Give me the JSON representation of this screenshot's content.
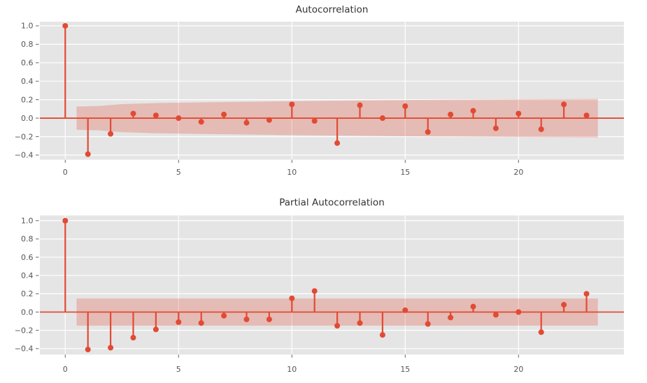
{
  "figure": {
    "background": "#ffffff",
    "panel_background": "#e5e5e5",
    "grid_color": "#ffffff",
    "accent_color": "#e24a33",
    "band_fill": "rgba(226,74,51,0.27)",
    "tick_mark_color": "#666666",
    "tick_label_color": "#555555",
    "title_color": "#333333"
  },
  "chart_data": [
    {
      "type": "stem",
      "title": "Autocorrelation",
      "xlabel": "",
      "ylabel": "",
      "grid": true,
      "legend": false,
      "xlim": [
        -1.12,
        24.65
      ],
      "ylim": [
        -0.45,
        1.045
      ],
      "xticks": [
        0,
        5,
        10,
        15,
        20
      ],
      "xtick_labels": [
        "0",
        "5",
        "10",
        "15",
        "20"
      ],
      "yticks": [
        1.0,
        0.8,
        0.6,
        0.4,
        0.2,
        0.0,
        -0.2,
        -0.4
      ],
      "ytick_labels": [
        "1.0",
        "0.8",
        "0.6",
        "0.4",
        "0.2",
        "0.0",
        "−0.2",
        "−0.4"
      ],
      "lags": [
        0,
        1,
        2,
        3,
        4,
        5,
        6,
        7,
        8,
        9,
        10,
        11,
        12,
        13,
        14,
        15,
        16,
        17,
        18,
        19,
        20,
        21,
        22,
        23
      ],
      "values": [
        1.0,
        -0.39,
        -0.17,
        0.05,
        0.03,
        0.0,
        -0.04,
        0.04,
        -0.05,
        -0.02,
        0.15,
        -0.03,
        -0.27,
        0.14,
        0.0,
        0.13,
        -0.15,
        0.04,
        0.08,
        -0.11,
        0.05,
        -0.12,
        0.15,
        0.03
      ],
      "confidence_band": {
        "symmetric": true,
        "upper": [
          [
            0.5,
            0.125
          ],
          [
            1.5,
            0.132
          ],
          [
            2.5,
            0.152
          ],
          [
            4,
            0.163
          ],
          [
            6,
            0.171
          ],
          [
            10,
            0.184
          ],
          [
            15,
            0.196
          ],
          [
            20,
            0.204
          ],
          [
            23.5,
            0.209
          ]
        ]
      }
    },
    {
      "type": "stem",
      "title": "Partial Autocorrelation",
      "xlabel": "",
      "ylabel": "",
      "grid": true,
      "legend": false,
      "xlim": [
        -1.12,
        24.65
      ],
      "ylim": [
        -0.465,
        1.057
      ],
      "xticks": [
        0,
        5,
        10,
        15,
        20
      ],
      "xtick_labels": [
        "0",
        "5",
        "10",
        "15",
        "20"
      ],
      "yticks": [
        1.0,
        0.8,
        0.6,
        0.4,
        0.2,
        0.0,
        -0.2,
        -0.4
      ],
      "ytick_labels": [
        "1.0",
        "0.8",
        "0.6",
        "0.4",
        "0.2",
        "0.0",
        "−0.2",
        "−0.4"
      ],
      "lags": [
        0,
        1,
        2,
        3,
        4,
        5,
        6,
        7,
        8,
        9,
        10,
        11,
        12,
        13,
        14,
        15,
        16,
        17,
        18,
        19,
        20,
        21,
        22,
        23
      ],
      "values": [
        1.0,
        -0.41,
        -0.39,
        -0.28,
        -0.19,
        -0.11,
        -0.12,
        -0.04,
        -0.08,
        -0.08,
        0.15,
        0.23,
        -0.15,
        -0.12,
        -0.25,
        0.02,
        -0.13,
        -0.06,
        0.06,
        -0.03,
        0.0,
        -0.22,
        0.08,
        0.2
      ],
      "confidence_band": {
        "symmetric": true,
        "upper": [
          [
            0.5,
            0.148
          ],
          [
            23.5,
            0.148
          ]
        ]
      }
    }
  ]
}
